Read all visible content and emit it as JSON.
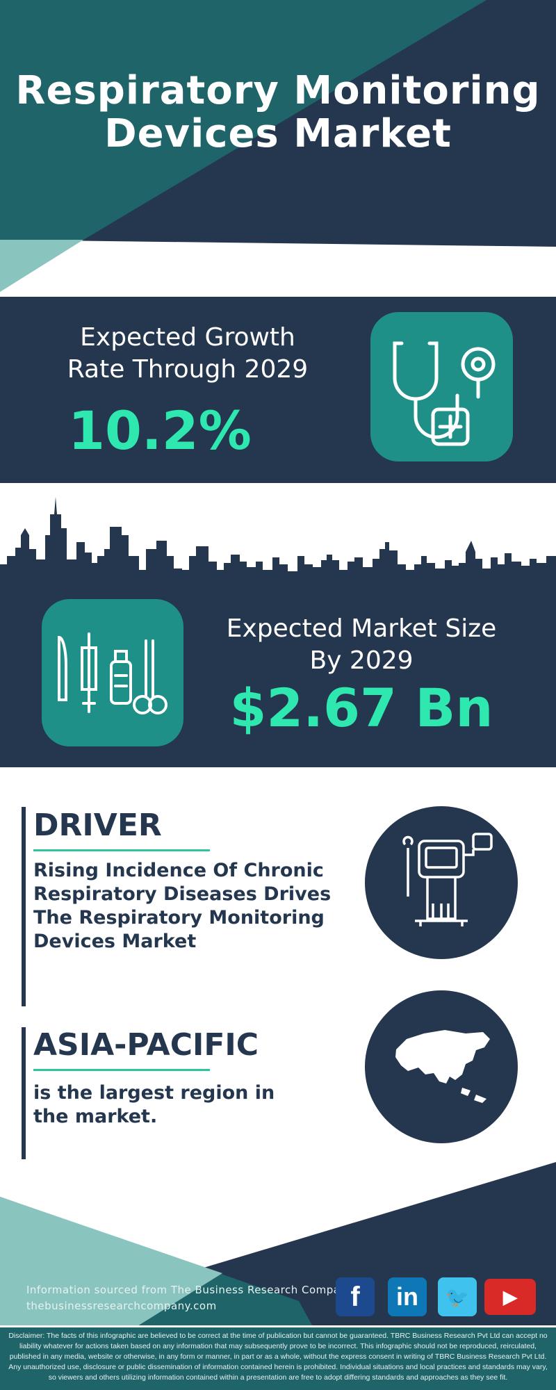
{
  "header": {
    "title_line1": "Respiratory Monitoring",
    "title_line2": "Devices Market"
  },
  "growth": {
    "label_line1": "Expected Growth",
    "label_line2": "Rate Through 2029",
    "value": "10.2%",
    "icon": "stethoscope-medical-cross-icon"
  },
  "market_size": {
    "label_line1": "Expected Market Size",
    "label_line2": "By 2029",
    "value": "$2.67 Bn",
    "icon": "medical-instruments-icon"
  },
  "driver": {
    "heading": "DRIVER",
    "text": "Rising Incidence Of Chronic Respiratory Diseases Drives The Respiratory Monitoring Devices Market",
    "icon": "ventilator-machine-icon"
  },
  "region": {
    "heading": "ASIA-PACIFIC",
    "text": "is the largest region in the market.",
    "icon": "asia-map-icon"
  },
  "footer": {
    "source": "Information sourced from The Business Research Company",
    "website": "thebusinessresearchcompany.com",
    "social": [
      {
        "name": "facebook",
        "glyph": "f",
        "color": "#1d4a8f"
      },
      {
        "name": "linkedin",
        "glyph": "in",
        "color": "#0e77b5"
      },
      {
        "name": "twitter",
        "glyph": "🐦",
        "color": "#3fc3ee"
      },
      {
        "name": "youtube",
        "glyph": "▶",
        "color": "#d92a27"
      }
    ],
    "disclaimer": "Disclaimer: The facts of this infographic are believed to be correct at the time of publication but cannot be guaranteed. TBRC Business Research Pvt Ltd can accept no liability whatever for actions taken based on any information that may subsequently prove to be incorrect. This infographic should not be reproduced, reirculated, published in any media, website or otherwise, in any form or manner, in part or as a whole, without the express consent in writing of TBRC Business Research Pvt Ltd. Any unauthorized use, disclosure or public dissemination of information contained herein is prohibited. Individual situations and local practices and standards may vary, so viewers and others utilizing information contained within a presentation are free to adopt differing standards and approaches as they see fit."
  },
  "colors": {
    "navy": "#24374f",
    "teal": "#1f6469",
    "light_teal": "#89c4bf",
    "icon_teal": "#1f9087",
    "accent_green": "#2ee8b0"
  }
}
